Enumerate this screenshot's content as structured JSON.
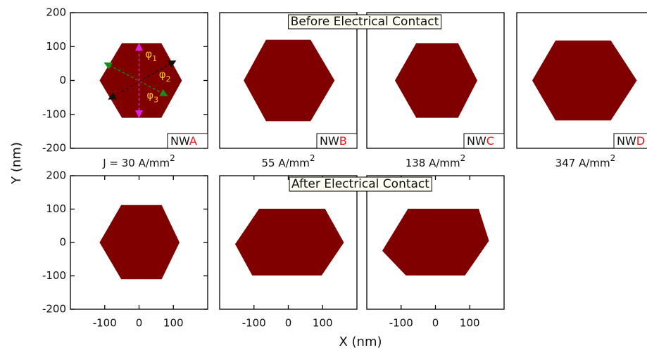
{
  "figure": {
    "row_titles": [
      "Before Electrical Contact",
      "After Electrical Contact"
    ],
    "x_label": "X (nm)",
    "y_label": "Y (nm)"
  },
  "chart_data": [
    {
      "type": "polygon",
      "color": "#800000",
      "xlim": [
        -200,
        200
      ],
      "ylim": [
        -200,
        200
      ],
      "yticks": [
        -200,
        -100,
        0,
        100,
        200
      ],
      "x": [
        -50,
        65,
        125,
        65,
        -50,
        -115
      ],
      "y": [
        110,
        110,
        0,
        -110,
        -110,
        0
      ],
      "label": {
        "text": "NW",
        "letter": "A"
      },
      "current_density": {
        "prefix": "J =",
        "text": "30 A/mm",
        "sup": "2"
      },
      "annotations": [
        {
          "text": "φ",
          "subscript": "1"
        },
        {
          "text": "φ",
          "subscript": "2"
        },
        {
          "text": "φ",
          "subscript": "3"
        }
      ]
    },
    {
      "type": "polygon",
      "color": "#800000",
      "xlim": [
        -200,
        200
      ],
      "ylim": [
        -200,
        200
      ],
      "x": [
        -65,
        65,
        135,
        65,
        -65,
        -130
      ],
      "y": [
        120,
        120,
        0,
        -120,
        -120,
        0
      ],
      "label": {
        "text": "NW",
        "letter": "B"
      },
      "current_density": {
        "text": "55 A/mm",
        "sup": "2"
      }
    },
    {
      "type": "polygon",
      "color": "#800000",
      "xlim": [
        -200,
        200
      ],
      "ylim": [
        -200,
        200
      ],
      "x": [
        -56,
        66,
        122,
        66,
        -56,
        -118
      ],
      "y": [
        110,
        110,
        0,
        -110,
        -110,
        0
      ],
      "label": {
        "text": "NW",
        "letter": "C"
      },
      "current_density": {
        "text": "138 A/mm",
        "sup": "2"
      }
    },
    {
      "type": "polygon",
      "color": "#800000",
      "xlim": [
        -200,
        200
      ],
      "ylim": [
        -200,
        200
      ],
      "x": [
        -87,
        74,
        150,
        74,
        -87,
        -155
      ],
      "y": [
        118,
        118,
        0,
        -118,
        -118,
        0
      ],
      "label": {
        "text": "NW",
        "letter": "D"
      },
      "current_density": {
        "text": "347 A/mm",
        "sup": "2"
      }
    },
    {
      "type": "polygon",
      "color": "#800000",
      "xlim": [
        -200,
        200
      ],
      "ylim": [
        -200,
        200
      ],
      "yticks": [
        -200,
        -100,
        0,
        100,
        200
      ],
      "xticks": [
        -100,
        0,
        100
      ],
      "x": [
        -52,
        66,
        118,
        66,
        -52,
        -115
      ],
      "y": [
        112,
        112,
        0,
        -110,
        -110,
        0
      ]
    },
    {
      "type": "polygon",
      "color": "#800000",
      "xlim": [
        -200,
        200
      ],
      "ylim": [
        -200,
        200
      ],
      "xticks": [
        -100,
        0,
        100
      ],
      "x": [
        -85,
        107,
        162,
        97,
        -105,
        -155
      ],
      "y": [
        101,
        101,
        0,
        -99,
        -99,
        -5
      ]
    },
    {
      "type": "polygon",
      "color": "#800000",
      "xlim": [
        -200,
        200
      ],
      "ylim": [
        -200,
        200
      ],
      "xticks": [
        -100,
        0,
        100
      ],
      "x": [
        -80,
        126,
        156,
        86,
        -86,
        -155
      ],
      "y": [
        101,
        101,
        5,
        -99,
        -99,
        -25
      ]
    }
  ]
}
